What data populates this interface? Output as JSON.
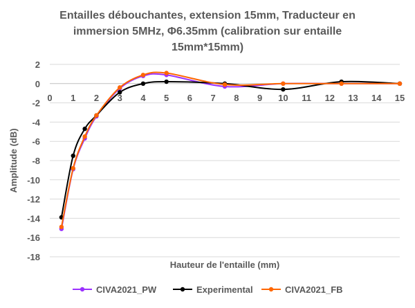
{
  "chart_data": {
    "type": "line",
    "title": "Entailles débouchantes, extension 15mm, Traducteur en immersion 5MHz, Φ6.35mm (calibration sur entaille 15mm*15mm)",
    "title_lines": [
      "Entailles débouchantes, extension 15mm, Traducteur en",
      "immersion 5MHz, Φ6.35mm (calibration sur entaille",
      "15mm*15mm)"
    ],
    "xlabel": "Hauteur de l'entaille (mm)",
    "ylabel": "Amplitude (dB)",
    "xlim": [
      0,
      15
    ],
    "ylim": [
      -18,
      2
    ],
    "x_ticks": [
      0,
      1,
      2,
      3,
      4,
      5,
      6,
      7,
      8,
      9,
      10,
      11,
      12,
      13,
      14,
      15
    ],
    "y_ticks": [
      2,
      0,
      -2,
      -4,
      -6,
      -8,
      -10,
      -12,
      -14,
      -16,
      -18
    ],
    "grid": "horizontal",
    "legend_position": "bottom",
    "series": [
      {
        "name": "CIVA2021_PW",
        "color": "#9b30ff",
        "x": [
          0.5,
          1,
          1.5,
          2,
          3,
          4,
          5,
          7.5,
          10,
          12.5,
          15
        ],
        "y": [
          -15.1,
          -8.9,
          -5.7,
          -3.4,
          -0.5,
          0.8,
          0.9,
          -0.3,
          0.0,
          0.0,
          0.0
        ]
      },
      {
        "name": "Experimental",
        "color": "#000000",
        "x": [
          0.5,
          1,
          1.5,
          2,
          3,
          4,
          5,
          7.5,
          10,
          12.5,
          15
        ],
        "y": [
          -13.9,
          -7.5,
          -4.7,
          -3.3,
          -0.9,
          0.0,
          0.2,
          0.0,
          -0.6,
          0.2,
          0.0
        ]
      },
      {
        "name": "CIVA2021_FB",
        "color": "#ff6600",
        "x": [
          0.5,
          1,
          1.5,
          2,
          3,
          4,
          5,
          7.5,
          10,
          12.5,
          15
        ],
        "y": [
          -14.9,
          -8.8,
          -5.5,
          -3.3,
          -0.4,
          0.9,
          1.1,
          -0.1,
          0.0,
          0.0,
          0.0
        ]
      }
    ]
  }
}
